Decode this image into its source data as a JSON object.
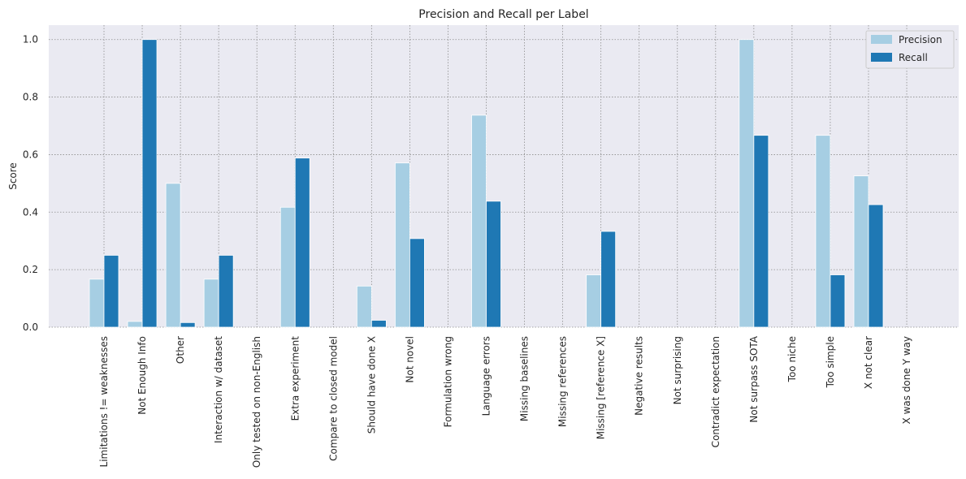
{
  "chart_data": {
    "type": "bar",
    "title": "Precision and Recall per Label",
    "xlabel": "",
    "ylabel": "Score",
    "ylim": [
      0,
      1.05
    ],
    "yticks": [
      "0.0",
      "0.2",
      "0.4",
      "0.6",
      "0.8",
      "1.0"
    ],
    "grid": true,
    "legend_position": "top-right",
    "categories": [
      "Limitations != weaknesses",
      "Not Enough Info",
      "Other",
      "Interaction w/ dataset",
      "Only tested on non-English",
      "Extra experiment",
      "Compare to closed model",
      "Should have done X",
      "Not novel",
      "Formulation wrong",
      "Language errors",
      "Missing baselines",
      "Missing references",
      "Missing [reference X]",
      "Negative results",
      "Not surprising",
      "Contradict expectation",
      "Not surpass SOTA",
      "Too niche",
      "Too simple",
      "X not clear",
      "X was done Y way"
    ],
    "series": [
      {
        "name": "Precision",
        "color": "#a6cee3",
        "values": [
          0.167,
          0.02,
          0.5,
          0.167,
          0,
          0.417,
          0,
          0.143,
          0.571,
          0,
          0.737,
          0,
          0,
          0.182,
          0,
          0,
          0,
          1.0,
          0,
          0.667,
          0.526,
          0
        ]
      },
      {
        "name": "Recall",
        "color": "#1f78b4",
        "values": [
          0.25,
          1.0,
          0.016,
          0.25,
          0,
          0.588,
          0,
          0.024,
          0.308,
          0,
          0.438,
          0,
          0,
          0.333,
          0,
          0,
          0,
          0.667,
          0,
          0.182,
          0.426,
          0
        ]
      }
    ]
  },
  "colors": {
    "plot_background": "#eaeaf2",
    "grid": "#8c8c8c"
  }
}
